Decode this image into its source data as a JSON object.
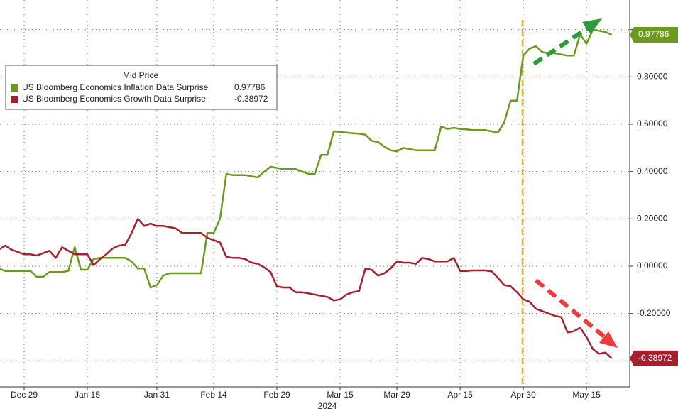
{
  "chart_data": {
    "type": "line",
    "legend_title": "Mid Price",
    "year_label": "2024",
    "categories": [
      null,
      null,
      null,
      null,
      "Dec 29",
      null,
      null,
      null,
      null,
      null,
      null,
      null,
      null,
      null,
      "Jan 15",
      null,
      null,
      null,
      null,
      null,
      null,
      null,
      null,
      null,
      null,
      "Jan 31",
      null,
      null,
      null,
      null,
      null,
      null,
      null,
      null,
      "Feb 14",
      null,
      null,
      null,
      null,
      null,
      null,
      null,
      null,
      null,
      "Feb 29",
      null,
      null,
      null,
      null,
      null,
      null,
      null,
      null,
      null,
      "Mar 15",
      null,
      null,
      null,
      null,
      null,
      null,
      null,
      null,
      "Mar 29",
      null,
      null,
      null,
      null,
      null,
      null,
      null,
      null,
      null,
      "Apr 15",
      null,
      null,
      null,
      null,
      null,
      null,
      null,
      null,
      null,
      "Apr 30",
      null,
      null,
      null,
      null,
      null,
      null,
      null,
      null,
      null,
      "May 15",
      null,
      null,
      null,
      null
    ],
    "series": [
      {
        "name": "US Bloomberg Economics Inflation Data Surprise",
        "color": "#6b9a1e",
        "values": [
          -0.01,
          -0.02,
          -0.02,
          -0.02,
          -0.02,
          -0.02,
          -0.045,
          -0.045,
          -0.025,
          -0.025,
          -0.025,
          -0.02,
          0.08,
          -0.015,
          -0.015,
          0.03,
          0.035,
          0.035,
          0.035,
          0.035,
          0.035,
          0.02,
          -0.01,
          -0.01,
          -0.09,
          -0.08,
          -0.04,
          -0.03,
          -0.03,
          -0.03,
          -0.03,
          -0.03,
          -0.03,
          0.14,
          0.14,
          0.2,
          0.39,
          0.385,
          0.385,
          0.385,
          0.38,
          0.375,
          0.4,
          0.42,
          0.415,
          0.41,
          0.41,
          0.41,
          0.4,
          0.39,
          0.39,
          0.47,
          0.47,
          0.57,
          0.568,
          0.565,
          0.562,
          0.56,
          0.556,
          0.53,
          0.525,
          0.505,
          0.49,
          0.485,
          0.5,
          0.495,
          0.49,
          0.49,
          0.49,
          0.49,
          0.59,
          0.58,
          0.585,
          0.58,
          0.578,
          0.575,
          0.575,
          0.575,
          0.57,
          0.565,
          0.61,
          0.7,
          0.7,
          0.89,
          0.92,
          0.93,
          0.905,
          0.9,
          0.9,
          0.895,
          0.89,
          0.89,
          0.98,
          0.94,
          1.0,
          0.995,
          0.99,
          0.97786
        ]
      },
      {
        "name": "US Bloomberg Economics Growth Data Surprise",
        "color": "#a3202f",
        "values": [
          0.07,
          0.087,
          0.07,
          0.06,
          0.05,
          0.05,
          0.045,
          0.055,
          0.065,
          0.035,
          0.08,
          0.065,
          0.05,
          0.05,
          0.05,
          0.005,
          0.03,
          0.05,
          0.075,
          0.087,
          0.09,
          0.14,
          0.2,
          0.17,
          0.18,
          0.17,
          0.17,
          0.165,
          0.16,
          0.14,
          0.14,
          0.14,
          0.14,
          0.12,
          0.11,
          0.1,
          0.04,
          0.035,
          0.035,
          0.03,
          0.015,
          0.01,
          -0.005,
          -0.025,
          -0.085,
          -0.09,
          -0.09,
          -0.11,
          -0.11,
          -0.115,
          -0.12,
          -0.125,
          -0.13,
          -0.145,
          -0.14,
          -0.12,
          -0.11,
          -0.105,
          -0.01,
          -0.015,
          -0.04,
          -0.03,
          -0.01,
          0.02,
          0.015,
          0.015,
          0.01,
          0.035,
          0.03,
          0.02,
          0.02,
          0.02,
          0.035,
          -0.02,
          -0.02,
          -0.018,
          -0.018,
          -0.018,
          -0.022,
          -0.05,
          -0.08,
          -0.085,
          -0.11,
          -0.14,
          -0.15,
          -0.18,
          -0.19,
          -0.2,
          -0.21,
          -0.215,
          -0.28,
          -0.275,
          -0.26,
          -0.3,
          -0.35,
          -0.37,
          -0.365,
          -0.38972
        ]
      }
    ],
    "ylim": [
      -0.51,
      1.125
    ],
    "yticks": [
      {
        "value": 0.8,
        "label": "0.80000"
      },
      {
        "value": 0.6,
        "label": "0.60000"
      },
      {
        "value": 0.4,
        "label": "0.40000"
      },
      {
        "value": 0.2,
        "label": "0.20000"
      },
      {
        "value": 0,
        "label": "0.00000"
      },
      {
        "value": -0.2,
        "label": "-0.20000"
      }
    ],
    "grid_lines": [
      1.0,
      -0.4
    ],
    "grid": true
  }
}
